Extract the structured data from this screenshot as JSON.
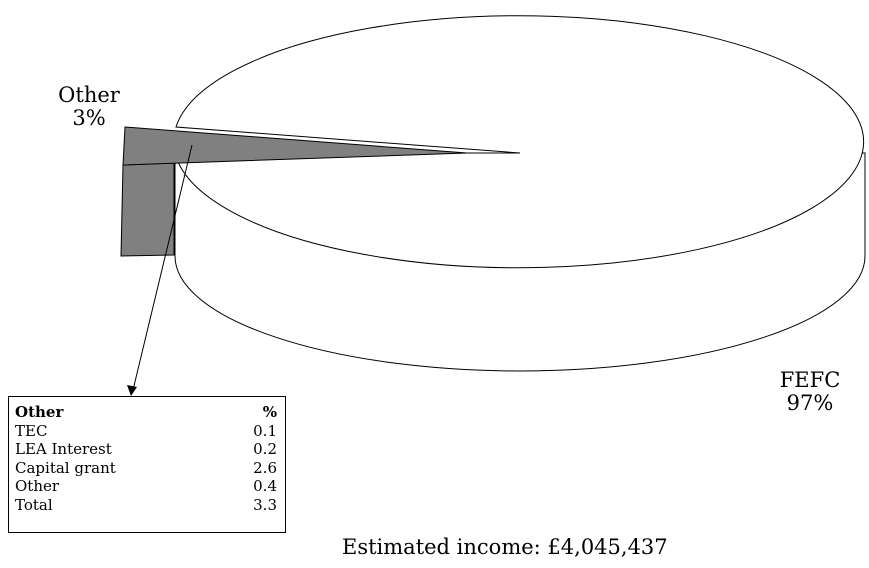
{
  "chart_data": {
    "type": "pie",
    "style": "3d-exploded",
    "slices": [
      {
        "label": "FEFC",
        "value": 97,
        "pct_label": "97%",
        "color": "#ffffff",
        "exploded": false
      },
      {
        "label": "Other",
        "value": 3,
        "pct_label": "3%",
        "color": "#808080",
        "exploded": true
      }
    ],
    "breakdown": {
      "columns": [
        "Other",
        "%"
      ],
      "rows": [
        {
          "label": "TEC",
          "value": "0.1"
        },
        {
          "label": "LEA Interest",
          "value": "0.2"
        },
        {
          "label": "Capital grant",
          "value": "2.6"
        },
        {
          "label": "Other",
          "value": "0.4"
        },
        {
          "label": "Total",
          "value": "3.3"
        }
      ]
    },
    "caption": "Estimated income: £4,045,437"
  }
}
